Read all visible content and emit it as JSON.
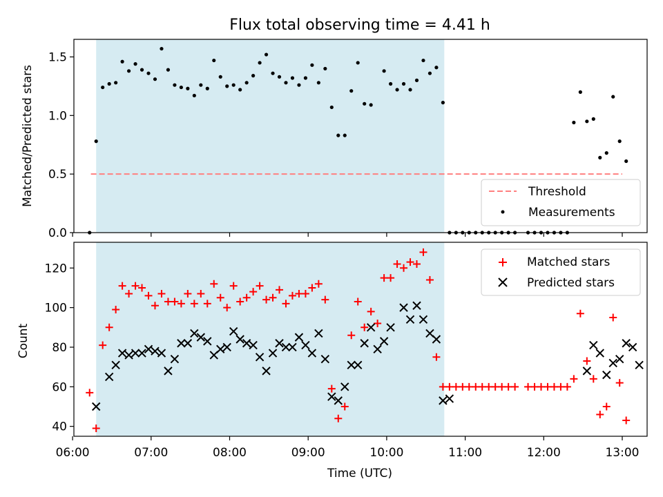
{
  "title": "Flux total observing time = 4.41 h",
  "chart_data": [
    {
      "type": "scatter",
      "title": "Flux total observing time = 4.41 h",
      "xlabel": "",
      "ylabel": "Matched/Predicted stars",
      "xlim": [
        "06:01",
        "13:19"
      ],
      "ylim": [
        0,
        1.65
      ],
      "xticks": [
        "06:00",
        "07:00",
        "08:00",
        "09:00",
        "10:00",
        "11:00",
        "12:00",
        "13:00"
      ],
      "yticks": [
        0.0,
        0.5,
        1.0,
        1.5
      ],
      "ytick_labels": [
        "0.0",
        "0.5",
        "1.0",
        "1.5"
      ],
      "grid": false,
      "legend_position": "lower right",
      "shaded_span": {
        "start": "06:18",
        "end": "10:44",
        "color": "#add8e6"
      },
      "threshold": {
        "name": "Threshold",
        "value": 0.5,
        "x_start": "06:14",
        "x_end": "13:00",
        "color": "#ff7f7f",
        "style": "dashed"
      },
      "series": [
        {
          "name": "Measurements",
          "color": "#000000",
          "marker": "dot",
          "points": [
            [
              "06:13",
              0.0
            ],
            [
              "06:18",
              0.78
            ],
            [
              "06:23",
              1.24
            ],
            [
              "06:28",
              1.27
            ],
            [
              "06:33",
              1.28
            ],
            [
              "06:38",
              1.46
            ],
            [
              "06:43",
              1.38
            ],
            [
              "06:48",
              1.44
            ],
            [
              "06:53",
              1.39
            ],
            [
              "06:58",
              1.36
            ],
            [
              "07:03",
              1.31
            ],
            [
              "07:08",
              1.57
            ],
            [
              "07:13",
              1.39
            ],
            [
              "07:18",
              1.26
            ],
            [
              "07:23",
              1.24
            ],
            [
              "07:28",
              1.23
            ],
            [
              "07:33",
              1.17
            ],
            [
              "07:38",
              1.26
            ],
            [
              "07:43",
              1.23
            ],
            [
              "07:48",
              1.47
            ],
            [
              "07:53",
              1.33
            ],
            [
              "07:58",
              1.25
            ],
            [
              "08:03",
              1.26
            ],
            [
              "08:08",
              1.22
            ],
            [
              "08:13",
              1.28
            ],
            [
              "08:18",
              1.34
            ],
            [
              "08:23",
              1.45
            ],
            [
              "08:28",
              1.52
            ],
            [
              "08:33",
              1.36
            ],
            [
              "08:38",
              1.33
            ],
            [
              "08:43",
              1.28
            ],
            [
              "08:48",
              1.32
            ],
            [
              "08:53",
              1.26
            ],
            [
              "08:58",
              1.32
            ],
            [
              "09:03",
              1.43
            ],
            [
              "09:08",
              1.28
            ],
            [
              "09:13",
              1.4
            ],
            [
              "09:18",
              1.07
            ],
            [
              "09:23",
              0.83
            ],
            [
              "09:28",
              0.83
            ],
            [
              "09:33",
              1.21
            ],
            [
              "09:38",
              1.45
            ],
            [
              "09:43",
              1.1
            ],
            [
              "09:48",
              1.09
            ],
            [
              "09:58",
              1.38
            ],
            [
              "10:03",
              1.27
            ],
            [
              "10:08",
              1.22
            ],
            [
              "10:13",
              1.27
            ],
            [
              "10:18",
              1.22
            ],
            [
              "10:23",
              1.3
            ],
            [
              "10:28",
              1.47
            ],
            [
              "10:33",
              1.36
            ],
            [
              "10:38",
              1.41
            ],
            [
              "10:43",
              1.11
            ],
            [
              "10:48",
              0.0
            ],
            [
              "10:53",
              0.0
            ],
            [
              "10:58",
              0.0
            ],
            [
              "11:03",
              0.0
            ],
            [
              "11:08",
              0.0
            ],
            [
              "11:13",
              0.0
            ],
            [
              "11:18",
              0.0
            ],
            [
              "11:23",
              0.0
            ],
            [
              "11:28",
              0.0
            ],
            [
              "11:33",
              0.0
            ],
            [
              "11:38",
              0.0
            ],
            [
              "11:48",
              0.0
            ],
            [
              "11:53",
              0.0
            ],
            [
              "11:58",
              0.0
            ],
            [
              "12:03",
              0.0
            ],
            [
              "12:08",
              0.0
            ],
            [
              "12:13",
              0.0
            ],
            [
              "12:18",
              0.0
            ],
            [
              "12:23",
              0.94
            ],
            [
              "12:28",
              1.2
            ],
            [
              "12:33",
              0.95
            ],
            [
              "12:38",
              0.97
            ],
            [
              "12:43",
              0.64
            ],
            [
              "12:48",
              0.68
            ],
            [
              "12:53",
              1.16
            ],
            [
              "12:58",
              0.78
            ],
            [
              "13:03",
              0.61
            ]
          ]
        }
      ]
    },
    {
      "type": "scatter",
      "title": "",
      "xlabel": "Time (UTC)",
      "ylabel": "Count",
      "xlim": [
        "06:01",
        "13:19"
      ],
      "ylim": [
        35,
        133
      ],
      "xticks": [
        "06:00",
        "07:00",
        "08:00",
        "09:00",
        "10:00",
        "11:00",
        "12:00",
        "13:00"
      ],
      "xtick_labels": [
        "06:00",
        "07:00",
        "08:00",
        "09:00",
        "10:00",
        "11:00",
        "12:00",
        "13:00"
      ],
      "yticks": [
        40,
        60,
        80,
        100,
        120
      ],
      "ytick_labels": [
        "40",
        "60",
        "80",
        "100",
        "120"
      ],
      "grid": false,
      "legend_position": "upper right",
      "shaded_span": {
        "start": "06:18",
        "end": "10:44",
        "color": "#add8e6"
      },
      "series": [
        {
          "name": "Matched stars",
          "color": "#ff0000",
          "marker": "plus",
          "points": [
            [
              "06:13",
              57
            ],
            [
              "06:18",
              39
            ],
            [
              "06:23",
              81
            ],
            [
              "06:28",
              90
            ],
            [
              "06:33",
              99
            ],
            [
              "06:38",
              111
            ],
            [
              "06:43",
              107
            ],
            [
              "06:48",
              111
            ],
            [
              "06:53",
              110
            ],
            [
              "06:58",
              106
            ],
            [
              "07:03",
              101
            ],
            [
              "07:08",
              107
            ],
            [
              "07:13",
              103
            ],
            [
              "07:18",
              103
            ],
            [
              "07:23",
              102
            ],
            [
              "07:28",
              107
            ],
            [
              "07:33",
              102
            ],
            [
              "07:38",
              107
            ],
            [
              "07:43",
              102
            ],
            [
              "07:48",
              112
            ],
            [
              "07:53",
              105
            ],
            [
              "07:58",
              100
            ],
            [
              "08:03",
              111
            ],
            [
              "08:08",
              103
            ],
            [
              "08:13",
              105
            ],
            [
              "08:18",
              108
            ],
            [
              "08:23",
              111
            ],
            [
              "08:28",
              104
            ],
            [
              "08:33",
              105
            ],
            [
              "08:38",
              109
            ],
            [
              "08:43",
              102
            ],
            [
              "08:48",
              106
            ],
            [
              "08:53",
              107
            ],
            [
              "08:58",
              107
            ],
            [
              "09:03",
              110
            ],
            [
              "09:08",
              112
            ],
            [
              "09:13",
              104
            ],
            [
              "09:18",
              59
            ],
            [
              "09:23",
              44
            ],
            [
              "09:28",
              50
            ],
            [
              "09:33",
              86
            ],
            [
              "09:38",
              103
            ],
            [
              "09:43",
              90
            ],
            [
              "09:48",
              98
            ],
            [
              "09:53",
              92
            ],
            [
              "09:58",
              115
            ],
            [
              "10:03",
              115
            ],
            [
              "10:08",
              122
            ],
            [
              "10:13",
              120
            ],
            [
              "10:18",
              123
            ],
            [
              "10:23",
              122
            ],
            [
              "10:28",
              128
            ],
            [
              "10:33",
              114
            ],
            [
              "10:38",
              75
            ],
            [
              "10:43",
              60
            ],
            [
              "10:48",
              60
            ],
            [
              "10:53",
              60
            ],
            [
              "10:58",
              60
            ],
            [
              "11:03",
              60
            ],
            [
              "11:08",
              60
            ],
            [
              "11:13",
              60
            ],
            [
              "11:18",
              60
            ],
            [
              "11:23",
              60
            ],
            [
              "11:28",
              60
            ],
            [
              "11:33",
              60
            ],
            [
              "11:38",
              60
            ],
            [
              "11:48",
              60
            ],
            [
              "11:53",
              60
            ],
            [
              "11:58",
              60
            ],
            [
              "12:03",
              60
            ],
            [
              "12:08",
              60
            ],
            [
              "12:13",
              60
            ],
            [
              "12:18",
              60
            ],
            [
              "12:23",
              64
            ],
            [
              "12:28",
              97
            ],
            [
              "12:33",
              73
            ],
            [
              "12:38",
              64
            ],
            [
              "12:43",
              46
            ],
            [
              "12:48",
              50
            ],
            [
              "12:53",
              95
            ],
            [
              "12:58",
              62
            ],
            [
              "13:03",
              43
            ]
          ]
        },
        {
          "name": "Predicted stars",
          "color": "#000000",
          "marker": "x",
          "points": [
            [
              "06:18",
              50
            ],
            [
              "06:28",
              65
            ],
            [
              "06:33",
              71
            ],
            [
              "06:38",
              77
            ],
            [
              "06:43",
              76
            ],
            [
              "06:48",
              77
            ],
            [
              "06:53",
              77
            ],
            [
              "06:58",
              79
            ],
            [
              "07:03",
              78
            ],
            [
              "07:08",
              77
            ],
            [
              "07:13",
              68
            ],
            [
              "07:18",
              74
            ],
            [
              "07:23",
              82
            ],
            [
              "07:28",
              82
            ],
            [
              "07:33",
              87
            ],
            [
              "07:38",
              85
            ],
            [
              "07:43",
              83
            ],
            [
              "07:48",
              76
            ],
            [
              "07:53",
              79
            ],
            [
              "07:58",
              80
            ],
            [
              "08:03",
              88
            ],
            [
              "08:08",
              84
            ],
            [
              "08:13",
              82
            ],
            [
              "08:18",
              81
            ],
            [
              "08:23",
              75
            ],
            [
              "08:28",
              68
            ],
            [
              "08:33",
              77
            ],
            [
              "08:38",
              82
            ],
            [
              "08:43",
              80
            ],
            [
              "08:48",
              80
            ],
            [
              "08:53",
              85
            ],
            [
              "08:58",
              81
            ],
            [
              "09:03",
              77
            ],
            [
              "09:08",
              87
            ],
            [
              "09:13",
              74
            ],
            [
              "09:18",
              55
            ],
            [
              "09:23",
              53
            ],
            [
              "09:28",
              60
            ],
            [
              "09:33",
              71
            ],
            [
              "09:38",
              71
            ],
            [
              "09:43",
              82
            ],
            [
              "09:48",
              90
            ],
            [
              "09:53",
              79
            ],
            [
              "09:58",
              83
            ],
            [
              "10:03",
              90
            ],
            [
              "10:13",
              100
            ],
            [
              "10:18",
              94
            ],
            [
              "10:23",
              101
            ],
            [
              "10:28",
              94
            ],
            [
              "10:33",
              87
            ],
            [
              "10:38",
              84
            ],
            [
              "10:43",
              53
            ],
            [
              "10:48",
              54
            ],
            [
              "12:33",
              68
            ],
            [
              "12:38",
              81
            ],
            [
              "12:43",
              77
            ],
            [
              "12:48",
              66
            ],
            [
              "12:53",
              72
            ],
            [
              "12:58",
              74
            ],
            [
              "13:03",
              82
            ],
            [
              "13:08",
              80
            ],
            [
              "13:13",
              71
            ]
          ]
        }
      ]
    }
  ]
}
